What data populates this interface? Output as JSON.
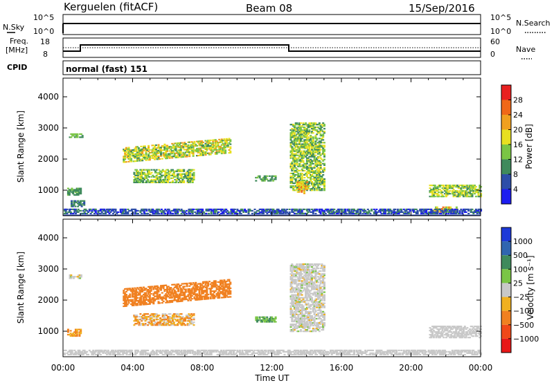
{
  "header": {
    "station": "Kerguelen (fitACF)",
    "beam": "Beam 08",
    "date": "15/Sep/2016"
  },
  "strip_labels": {
    "nsky": "N.Sky",
    "nsearch": "N.Search",
    "freq_line1": "Freq.",
    "freq_line2": "[MHz]",
    "nave": "Nave",
    "cpid": "CPID",
    "mode": "normal (fast) 151"
  },
  "strip_ticks": {
    "noise_left": [
      "10^5",
      "10^0"
    ],
    "noise_right": [
      "10^5",
      "10^0"
    ],
    "freq_left": [
      "18",
      "8"
    ],
    "freq_right": [
      "60",
      "0"
    ]
  },
  "colors": {
    "power_scale": [
      "#1d1df0",
      "#2d4ea8",
      "#3f8a5c",
      "#7ac545",
      "#e8e020",
      "#f0a020",
      "#f06818",
      "#e82020"
    ],
    "velocity_scale": [
      "#1d39d8",
      "#3065b0",
      "#3f8a5c",
      "#7ac545",
      "#c8c8c8",
      "#f0b020",
      "#f08020",
      "#f04818",
      "#e81818"
    ],
    "ground": "#c8c8c8"
  },
  "chart_data": [
    {
      "type": "heatmap",
      "name": "power",
      "xlabel": "",
      "ylabel": "Slant Range [km]",
      "xlim": [
        0,
        24
      ],
      "ylim": [
        180,
        4600
      ],
      "y_ticks": [
        1000,
        2000,
        3000,
        4000
      ],
      "colorbar": {
        "label": "Power [dB]",
        "ticks": [
          "4",
          "8",
          "12",
          "16",
          "20",
          "24",
          "28"
        ],
        "range": [
          0,
          32
        ]
      },
      "echo_regions": [
        {
          "t0": 0.3,
          "t1": 1.1,
          "r0": 2700,
          "r1": 2850,
          "v0": 10,
          "v1": 16
        },
        {
          "t0": 0.2,
          "t1": 1.0,
          "r0": 850,
          "r1": 1100,
          "v0": 8,
          "v1": 14
        },
        {
          "t0": 0.4,
          "t1": 1.2,
          "r0": 480,
          "r1": 700,
          "v0": 6,
          "v1": 12
        },
        {
          "t0": 3.4,
          "t1": 9.6,
          "r0": 1900,
          "r1": 2400,
          "v0": 10,
          "v1": 22,
          "slope": 0.11
        },
        {
          "t0": 4.0,
          "t1": 7.5,
          "r0": 1250,
          "r1": 1700,
          "v0": 8,
          "v1": 20
        },
        {
          "t0": 11.0,
          "t1": 12.2,
          "r0": 1300,
          "r1": 1500,
          "v0": 8,
          "v1": 14
        },
        {
          "t0": 13.0,
          "t1": 15.0,
          "r0": 1000,
          "r1": 3200,
          "v0": 8,
          "v1": 20
        },
        {
          "t0": 13.4,
          "t1": 14.0,
          "r0": 900,
          "r1": 1300,
          "v0": 16,
          "v1": 26
        },
        {
          "t0": 21.0,
          "t1": 24.0,
          "r0": 800,
          "r1": 1200,
          "v0": 10,
          "v1": 20
        },
        {
          "t0": 21.2,
          "t1": 22.6,
          "r0": 300,
          "r1": 500,
          "v0": 14,
          "v1": 26
        },
        {
          "t0": 0.0,
          "t1": 24.0,
          "r0": 250,
          "r1": 430,
          "v0": 2,
          "v1": 10
        }
      ]
    },
    {
      "type": "heatmap",
      "name": "velocity",
      "xlabel": "Time UT",
      "ylabel": "Slant Range [km]",
      "xlim": [
        0,
        24
      ],
      "ylim": [
        180,
        4600
      ],
      "x_ticks": [
        "00:00",
        "04:00",
        "08:00",
        "12:00",
        "16:00",
        "20:00",
        "00:00"
      ],
      "y_ticks": [
        1000,
        2000,
        3000,
        4000
      ],
      "colorbar": {
        "label": "Velocity [m s⁻¹]",
        "ticks": [
          "1000",
          "500",
          "100",
          "25",
          "−25",
          "−100",
          "−500",
          "−1000"
        ]
      },
      "echo_regions": [
        {
          "t0": 0.3,
          "t1": 1.1,
          "r0": 2700,
          "r1": 2850,
          "v0": -30,
          "v1": 30
        },
        {
          "t0": 0.2,
          "t1": 1.0,
          "r0": 850,
          "r1": 1100,
          "v0": -200,
          "v1": -50
        },
        {
          "t0": 3.4,
          "t1": 9.6,
          "r0": 1800,
          "r1": 2400,
          "v0": -400,
          "v1": -150,
          "slope": 0.11
        },
        {
          "t0": 4.0,
          "t1": 7.5,
          "r0": 1200,
          "r1": 1600,
          "v0": -200,
          "v1": 20
        },
        {
          "t0": 11.0,
          "t1": 12.2,
          "r0": 1300,
          "r1": 1500,
          "v0": 40,
          "v1": 150
        },
        {
          "t0": 13.0,
          "t1": 15.0,
          "r0": 1000,
          "r1": 3200,
          "v0": -30,
          "v1": 30
        },
        {
          "t0": 21.0,
          "t1": 24.0,
          "r0": 800,
          "r1": 1200,
          "v0": -25,
          "v1": 25
        },
        {
          "t0": 0.0,
          "t1": 24.0,
          "r0": 250,
          "r1": 430,
          "v0": -25,
          "v1": 25
        }
      ]
    }
  ]
}
